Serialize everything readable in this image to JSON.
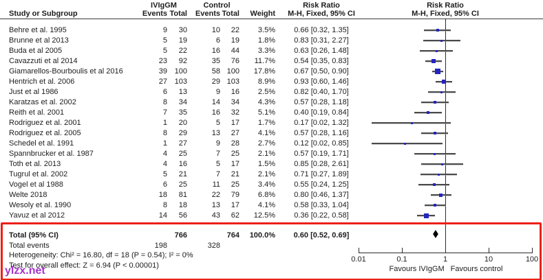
{
  "header": {
    "group1": "IVIgGM",
    "group2": "Control",
    "risk_ratio": "Risk Ratio",
    "study": "Study or Subgroup",
    "events": "Events",
    "total": "Total",
    "weight": "Weight",
    "mh": "M-H, Fixed, 95% CI"
  },
  "chart_data": {
    "type": "forest_plot",
    "effect_measure": "Risk Ratio, M-H, Fixed, 95% CI",
    "x_scale": "log",
    "x_tick_values": [
      0.01,
      0.1,
      1,
      10,
      100
    ],
    "x_tick_labels": [
      "0.01",
      "0.1",
      "1",
      "10",
      "100"
    ],
    "null_line": 1,
    "studies": [
      {
        "name": "Behre et al. 1995",
        "iviggm_events": 9,
        "iviggm_total": 30,
        "control_events": 10,
        "control_total": 22,
        "weight": "3.5%",
        "rr": 0.66,
        "ci_low": 0.32,
        "ci_high": 1.35,
        "rr_text": "0.66 [0.32, 1.35]"
      },
      {
        "name": "Brunne et al 2013",
        "iviggm_events": 5,
        "iviggm_total": 19,
        "control_events": 6,
        "control_total": 19,
        "weight": "1.8%",
        "rr": 0.83,
        "ci_low": 0.31,
        "ci_high": 2.27,
        "rr_text": "0.83 [0.31, 2.27]"
      },
      {
        "name": "Buda et al 2005",
        "iviggm_events": 5,
        "iviggm_total": 22,
        "control_events": 16,
        "control_total": 44,
        "weight": "3.3%",
        "rr": 0.63,
        "ci_low": 0.26,
        "ci_high": 1.48,
        "rr_text": "0.63 [0.26, 1.48]"
      },
      {
        "name": "Cavazzuti et al 2014",
        "iviggm_events": 23,
        "iviggm_total": 92,
        "control_events": 35,
        "control_total": 76,
        "weight": "11.7%",
        "rr": 0.54,
        "ci_low": 0.35,
        "ci_high": 0.83,
        "rr_text": "0.54 [0.35, 0.83]"
      },
      {
        "name": "Giamarellos-Bourboulis et al 2016",
        "iviggm_events": 39,
        "iviggm_total": 100,
        "control_events": 58,
        "control_total": 100,
        "weight": "17.8%",
        "rr": 0.67,
        "ci_low": 0.5,
        "ci_high": 0.9,
        "rr_text": "0.67 [0.50, 0.90]"
      },
      {
        "name": "Hentrich et al. 2006",
        "iviggm_events": 27,
        "iviggm_total": 103,
        "control_events": 29,
        "control_total": 103,
        "weight": "8.9%",
        "rr": 0.93,
        "ci_low": 0.6,
        "ci_high": 1.46,
        "rr_text": "0.93 [0.60, 1.46]"
      },
      {
        "name": "Just et al 1986",
        "iviggm_events": 6,
        "iviggm_total": 13,
        "control_events": 9,
        "control_total": 16,
        "weight": "2.5%",
        "rr": 0.82,
        "ci_low": 0.4,
        "ci_high": 1.7,
        "rr_text": "0.82 [0.40, 1.70]"
      },
      {
        "name": "Karatzas et al. 2002",
        "iviggm_events": 8,
        "iviggm_total": 34,
        "control_events": 14,
        "control_total": 34,
        "weight": "4.3%",
        "rr": 0.57,
        "ci_low": 0.28,
        "ci_high": 1.18,
        "rr_text": "0.57 [0.28, 1.18]"
      },
      {
        "name": "Reith et al. 2001",
        "iviggm_events": 7,
        "iviggm_total": 35,
        "control_events": 16,
        "control_total": 32,
        "weight": "5.1%",
        "rr": 0.4,
        "ci_low": 0.19,
        "ci_high": 0.84,
        "rr_text": "0.40 [0.19, 0.84]"
      },
      {
        "name": "Rodriguez et al. 2001",
        "iviggm_events": 1,
        "iviggm_total": 20,
        "control_events": 5,
        "control_total": 17,
        "weight": "1.7%",
        "rr": 0.17,
        "ci_low": 0.02,
        "ci_high": 1.32,
        "rr_text": "0.17 [0.02, 1.32]"
      },
      {
        "name": "Rodriguez et al. 2005",
        "iviggm_events": 8,
        "iviggm_total": 29,
        "control_events": 13,
        "control_total": 27,
        "weight": "4.1%",
        "rr": 0.57,
        "ci_low": 0.28,
        "ci_high": 1.16,
        "rr_text": "0.57 [0.28, 1.16]"
      },
      {
        "name": "Schedel et al. 1991",
        "iviggm_events": 1,
        "iviggm_total": 27,
        "control_events": 9,
        "control_total": 28,
        "weight": "2.7%",
        "rr": 0.12,
        "ci_low": 0.02,
        "ci_high": 0.85,
        "rr_text": "0.12 [0.02, 0.85]"
      },
      {
        "name": "Spannbrucker et al. 1987",
        "iviggm_events": 4,
        "iviggm_total": 25,
        "control_events": 7,
        "control_total": 25,
        "weight": "2.1%",
        "rr": 0.57,
        "ci_low": 0.19,
        "ci_high": 1.71,
        "rr_text": "0.57 [0.19, 1.71]"
      },
      {
        "name": "Toth et al. 2013",
        "iviggm_events": 4,
        "iviggm_total": 16,
        "control_events": 5,
        "control_total": 17,
        "weight": "1.5%",
        "rr": 0.85,
        "ci_low": 0.28,
        "ci_high": 2.61,
        "rr_text": "0.85 [0.28, 2.61]"
      },
      {
        "name": "Tugrul et al. 2002",
        "iviggm_events": 5,
        "iviggm_total": 21,
        "control_events": 7,
        "control_total": 21,
        "weight": "2.1%",
        "rr": 0.71,
        "ci_low": 0.27,
        "ci_high": 1.89,
        "rr_text": "0.71 [0.27, 1.89]"
      },
      {
        "name": "Vogel et al 1988",
        "iviggm_events": 6,
        "iviggm_total": 25,
        "control_events": 11,
        "control_total": 25,
        "weight": "3.4%",
        "rr": 0.55,
        "ci_low": 0.24,
        "ci_high": 1.25,
        "rr_text": "0.55 [0.24, 1.25]"
      },
      {
        "name": "Welte 2018",
        "iviggm_events": 18,
        "iviggm_total": 81,
        "control_events": 22,
        "control_total": 79,
        "weight": "6.8%",
        "rr": 0.8,
        "ci_low": 0.46,
        "ci_high": 1.37,
        "rr_text": "0.80 [0.46, 1.37]"
      },
      {
        "name": "Wesoly et al. 1990",
        "iviggm_events": 8,
        "iviggm_total": 18,
        "control_events": 13,
        "control_total": 17,
        "weight": "4.1%",
        "rr": 0.58,
        "ci_low": 0.33,
        "ci_high": 1.04,
        "rr_text": "0.58 [0.33, 1.04]"
      },
      {
        "name": "Yavuz et al 2012",
        "iviggm_events": 14,
        "iviggm_total": 56,
        "control_events": 43,
        "control_total": 62,
        "weight": "12.5%",
        "rr": 0.36,
        "ci_low": 0.22,
        "ci_high": 0.58,
        "rr_text": "0.36 [0.22, 0.58]"
      }
    ],
    "total": {
      "label": "Total (95% CI)",
      "iviggm_total": 766,
      "control_total": 764,
      "weight": "100.0%",
      "rr": 0.6,
      "ci_low": 0.52,
      "ci_high": 0.69,
      "rr_text": "0.60 [0.52, 0.69]"
    },
    "total_events": {
      "label": "Total events",
      "iviggm": 198,
      "control": 328
    },
    "heterogeneity": "Heterogeneity: Chi² = 16.80, df = 18 (P = 0.54); I² = 0%",
    "overall_effect": "Test for overall effect: Z = 6.94 (P < 0.00001)",
    "favours_left": "Favours IVIgGM",
    "favours_right": "Favours control"
  },
  "annotation": {
    "red_box_color": "#ec2016"
  },
  "watermark": {
    "text": "ylzx.net",
    "color": "#a333cc"
  },
  "colors": {
    "marker_blue": "#2424c0",
    "diamond_black": "#000000",
    "line_gray": "#4a4a4a"
  }
}
